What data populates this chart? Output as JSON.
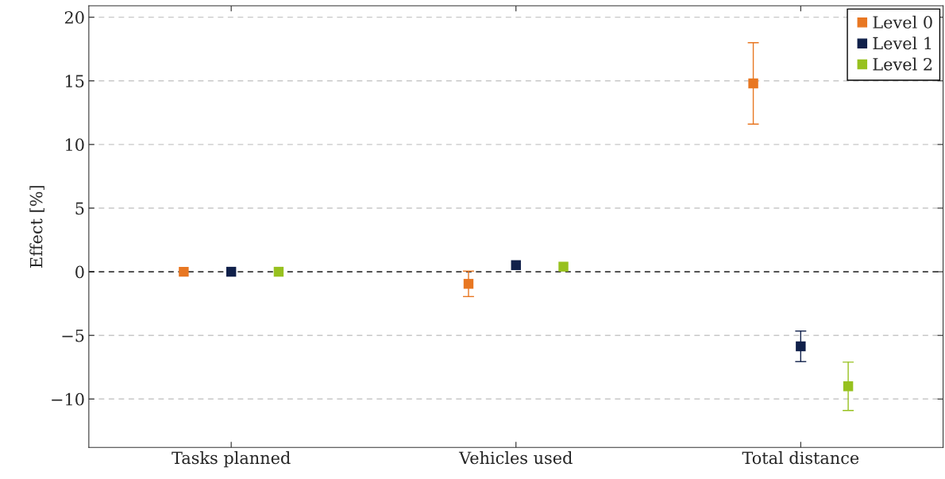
{
  "chart_data": {
    "type": "scatter",
    "ylabel": "Effect [%]",
    "categories": [
      "Tasks planned",
      "Vehicles used",
      "Total distance"
    ],
    "series": [
      {
        "name": "Level 0",
        "color": "#e87722",
        "values": [
          0,
          -0.95,
          14.8
        ],
        "errors": [
          null,
          1,
          3.2
        ]
      },
      {
        "name": "Level 1",
        "color": "#10204a",
        "values": [
          0,
          0.52,
          -5.86
        ],
        "errors": [
          null,
          null,
          1.2
        ]
      },
      {
        "name": "Level 2",
        "color": "#97c11f",
        "values": [
          0,
          0.4,
          -9.0
        ],
        "errors": [
          null,
          null,
          1.9
        ]
      }
    ],
    "ylim": [
      -13.8,
      20.9
    ],
    "yticks": [
      -10,
      -5,
      0,
      5,
      10,
      15,
      20
    ],
    "ref_lines": [
      {
        "axis": "y",
        "value": 0,
        "color": "#000000",
        "line_style": "dashed"
      }
    ],
    "grid": "y",
    "legend": "top right",
    "marker": "square"
  }
}
